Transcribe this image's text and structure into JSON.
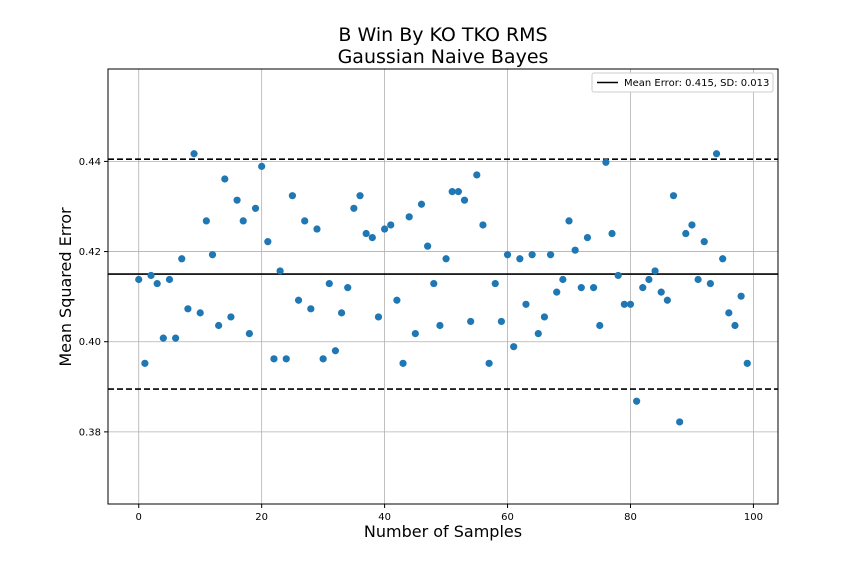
{
  "chart_data": {
    "type": "scatter",
    "title": "B Win By KO TKO RMS",
    "subtitle": "Gaussian Naive Bayes",
    "xlabel": "Number of Samples",
    "ylabel": "Mean Squared Error",
    "xlim": [
      -5,
      104
    ],
    "ylim": [
      0.364,
      0.4605
    ],
    "xticks": [
      0,
      20,
      40,
      60,
      80,
      100
    ],
    "yticks": [
      0.38,
      0.4,
      0.42,
      0.44
    ],
    "ytick_labels": [
      "0.38",
      "0.40",
      "0.42",
      "0.44"
    ],
    "grid": true,
    "marker_color": "#1f77b4",
    "legend": {
      "placement": "top-right",
      "entries": [
        "Mean Error: 0.415, SD: 0.013"
      ]
    },
    "reference_lines": [
      {
        "kind": "mean",
        "y": 0.415,
        "style": "solid",
        "color": "#000000"
      },
      {
        "kind": "upper",
        "y": 0.4405,
        "style": "dashed",
        "color": "#000000"
      },
      {
        "kind": "lower",
        "y": 0.3895,
        "style": "dashed",
        "color": "#000000"
      }
    ],
    "series": [
      {
        "x": [
          0,
          1,
          2,
          3,
          4,
          5,
          6,
          7,
          8,
          9,
          10,
          11,
          12,
          13,
          14,
          15,
          16,
          17,
          18,
          19,
          20,
          21,
          22,
          23,
          24,
          25,
          26,
          27,
          28,
          29,
          30,
          31,
          32,
          33,
          34,
          35,
          36,
          37,
          38,
          39,
          40,
          41,
          42,
          43,
          44,
          45,
          46,
          47,
          48,
          49,
          50,
          51,
          52,
          53,
          54,
          55,
          56,
          57,
          58,
          59,
          60,
          61,
          62,
          63,
          64,
          65,
          66,
          67,
          68,
          69,
          70,
          71,
          72,
          73,
          74,
          75,
          76,
          77,
          78,
          79,
          80,
          81,
          82,
          83,
          84,
          85,
          86,
          87,
          88,
          89,
          90,
          91,
          92,
          93,
          94,
          95,
          96,
          97,
          98,
          99
        ],
        "y": [
          0.4138,
          0.3952,
          0.4147,
          0.4129,
          0.4008,
          0.4138,
          0.4008,
          0.4184,
          0.4073,
          0.4417,
          0.4064,
          0.4268,
          0.4193,
          0.4036,
          0.4361,
          0.4055,
          0.4314,
          0.4268,
          0.4018,
          0.4296,
          0.4389,
          0.4222,
          0.3962,
          0.4157,
          0.3962,
          0.4324,
          0.4092,
          0.4268,
          0.4073,
          0.425,
          0.3962,
          0.4129,
          0.398,
          0.4064,
          0.412,
          0.4296,
          0.4324,
          0.424,
          0.4231,
          0.4055,
          0.425,
          0.4259,
          0.4092,
          0.3952,
          0.4277,
          0.4018,
          0.4305,
          0.4212,
          0.4129,
          0.4036,
          0.4184,
          0.4333,
          0.4333,
          0.4314,
          0.4045,
          0.437,
          0.4259,
          0.3952,
          0.4129,
          0.4045,
          0.4193,
          0.3989,
          0.4184,
          0.4083,
          0.4193,
          0.4018,
          0.4055,
          0.4193,
          0.411,
          0.4138,
          0.4268,
          0.4203,
          0.412,
          0.4231,
          0.412,
          0.4036,
          0.4398,
          0.424,
          0.4147,
          0.4083,
          0.4083,
          0.3868,
          0.412,
          0.4138,
          0.4157,
          0.411,
          0.4092,
          0.4324,
          0.3822,
          0.424,
          0.4259,
          0.4138,
          0.4222,
          0.4129,
          0.4417,
          0.4184,
          0.4064,
          0.4036,
          0.4101,
          0.3952
        ]
      }
    ]
  }
}
